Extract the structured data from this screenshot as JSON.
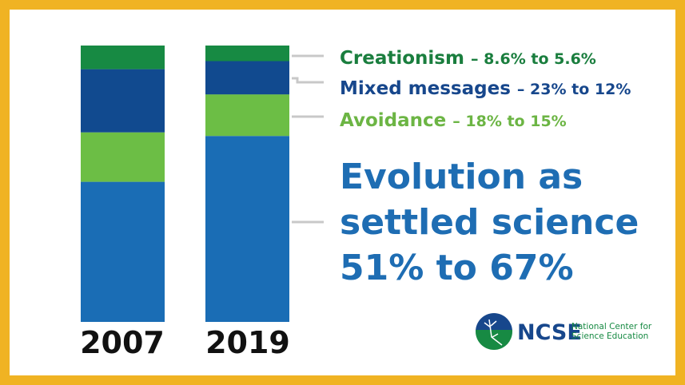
{
  "colors": {
    "border": "#f0b323",
    "creationism": "#178a43",
    "mixed": "#114a8f",
    "avoidance": "#6cbe45",
    "evolution": "#1a6db5",
    "connector": "#c8c8c8"
  },
  "chart_data": {
    "type": "bar",
    "stacked": true,
    "categories": [
      "2007",
      "2019"
    ],
    "series": [
      {
        "name": "Evolution as settled science",
        "values": [
          51,
          67
        ],
        "color": "#1a6db5"
      },
      {
        "name": "Avoidance",
        "values": [
          18,
          15
        ],
        "color": "#6cbe45"
      },
      {
        "name": "Mixed messages",
        "values": [
          23,
          12
        ],
        "color": "#114a8f"
      },
      {
        "name": "Creationism",
        "values": [
          8.6,
          5.6
        ],
        "color": "#178a43"
      }
    ],
    "legend_placement": "right",
    "grid": false
  },
  "labels": {
    "creationism": {
      "name": "Creationism",
      "change": "– 8.6% to 5.6%"
    },
    "mixed": {
      "name": "Mixed messages",
      "change": "– 23% to 12%"
    },
    "avoidance": {
      "name": "Avoidance",
      "change": "– 18% to 15%"
    },
    "evolution": {
      "line1": "Evolution as",
      "line2": "settled science",
      "line3": "51% to 67%"
    }
  },
  "logo": {
    "acronym": "NCSE",
    "line1": "National Center for",
    "line2": "Science Education"
  }
}
